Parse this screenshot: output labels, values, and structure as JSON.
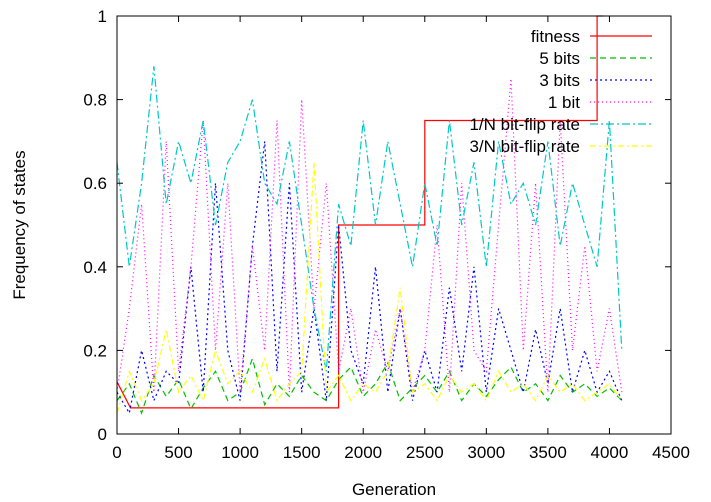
{
  "chart_data": {
    "type": "line",
    "xlabel": "Generation",
    "ylabel": "Frequency of states",
    "xlim": [
      0,
      4500
    ],
    "ylim": [
      0,
      1
    ],
    "x_ticks": [
      0,
      500,
      1000,
      1500,
      2000,
      2500,
      3000,
      3500,
      4000,
      4500
    ],
    "y_ticks": [
      0,
      0.2,
      0.4,
      0.6,
      0.8,
      1
    ],
    "y_tick_labels": [
      "0",
      "0.2",
      "0.4",
      "0.6",
      "0.8",
      "1"
    ],
    "legend_position": "top-right",
    "grid": false,
    "series": [
      {
        "name": "fitness",
        "color": "#ff0000",
        "dash": "solid",
        "step": true,
        "points": [
          [
            0,
            0.125
          ],
          [
            110,
            0.0625
          ],
          [
            1800,
            0.0625
          ],
          [
            1800,
            0.5
          ],
          [
            2500,
            0.5
          ],
          [
            2500,
            0.75
          ],
          [
            3900,
            0.75
          ],
          [
            3900,
            1.0
          ],
          [
            3950,
            1.0
          ]
        ]
      },
      {
        "name": "5 bits",
        "color": "#00c000",
        "dash": "6,4",
        "points": [
          [
            0,
            0.08
          ],
          [
            100,
            0.12
          ],
          [
            200,
            0.05
          ],
          [
            300,
            0.14
          ],
          [
            400,
            0.09
          ],
          [
            500,
            0.13
          ],
          [
            600,
            0.06
          ],
          [
            700,
            0.11
          ],
          [
            800,
            0.15
          ],
          [
            900,
            0.08
          ],
          [
            1000,
            0.1
          ],
          [
            1100,
            0.18
          ],
          [
            1200,
            0.07
          ],
          [
            1300,
            0.12
          ],
          [
            1400,
            0.09
          ],
          [
            1500,
            0.14
          ],
          [
            1600,
            0.1
          ],
          [
            1700,
            0.08
          ],
          [
            1800,
            0.13
          ],
          [
            1900,
            0.16
          ],
          [
            2000,
            0.09
          ],
          [
            2100,
            0.12
          ],
          [
            2200,
            0.17
          ],
          [
            2300,
            0.08
          ],
          [
            2400,
            0.11
          ],
          [
            2500,
            0.14
          ],
          [
            2600,
            0.1
          ],
          [
            2700,
            0.15
          ],
          [
            2800,
            0.08
          ],
          [
            2900,
            0.12
          ],
          [
            3000,
            0.09
          ],
          [
            3100,
            0.13
          ],
          [
            3200,
            0.16
          ],
          [
            3300,
            0.1
          ],
          [
            3400,
            0.12
          ],
          [
            3500,
            0.08
          ],
          [
            3600,
            0.14
          ],
          [
            3700,
            0.1
          ],
          [
            3800,
            0.12
          ],
          [
            3900,
            0.09
          ],
          [
            4000,
            0.11
          ],
          [
            4100,
            0.08
          ]
        ]
      },
      {
        "name": "3 bits",
        "color": "#0000ff",
        "dash": "2,3",
        "points": [
          [
            0,
            0.1
          ],
          [
            100,
            0.05
          ],
          [
            200,
            0.2
          ],
          [
            300,
            0.08
          ],
          [
            400,
            0.15
          ],
          [
            500,
            0.12
          ],
          [
            600,
            0.4
          ],
          [
            700,
            0.1
          ],
          [
            800,
            0.6
          ],
          [
            900,
            0.2
          ],
          [
            1000,
            0.08
          ],
          [
            1100,
            0.45
          ],
          [
            1200,
            0.7
          ],
          [
            1300,
            0.15
          ],
          [
            1400,
            0.6
          ],
          [
            1500,
            0.1
          ],
          [
            1600,
            0.3
          ],
          [
            1700,
            0.08
          ],
          [
            1800,
            0.5
          ],
          [
            1900,
            0.2
          ],
          [
            2000,
            0.12
          ],
          [
            2100,
            0.4
          ],
          [
            2200,
            0.1
          ],
          [
            2300,
            0.3
          ],
          [
            2400,
            0.08
          ],
          [
            2500,
            0.2
          ],
          [
            2600,
            0.1
          ],
          [
            2700,
            0.35
          ],
          [
            2800,
            0.15
          ],
          [
            2900,
            0.4
          ],
          [
            3000,
            0.1
          ],
          [
            3100,
            0.3
          ],
          [
            3200,
            0.2
          ],
          [
            3300,
            0.1
          ],
          [
            3400,
            0.25
          ],
          [
            3500,
            0.12
          ],
          [
            3600,
            0.3
          ],
          [
            3700,
            0.1
          ],
          [
            3800,
            0.2
          ],
          [
            3900,
            0.1
          ],
          [
            4000,
            0.15
          ],
          [
            4100,
            0.08
          ]
        ]
      },
      {
        "name": "1 bit",
        "color": "#ff00ff",
        "dash": "1,3",
        "points": [
          [
            0,
            0.1
          ],
          [
            100,
            0.3
          ],
          [
            200,
            0.55
          ],
          [
            300,
            0.1
          ],
          [
            400,
            0.7
          ],
          [
            500,
            0.15
          ],
          [
            600,
            0.4
          ],
          [
            700,
            0.75
          ],
          [
            800,
            0.2
          ],
          [
            900,
            0.6
          ],
          [
            1000,
            0.1
          ],
          [
            1100,
            0.45
          ],
          [
            1200,
            0.2
          ],
          [
            1300,
            0.75
          ],
          [
            1400,
            0.1
          ],
          [
            1500,
            0.8
          ],
          [
            1600,
            0.3
          ],
          [
            1700,
            0.6
          ],
          [
            1800,
            0.15
          ],
          [
            1900,
            0.3
          ],
          [
            2000,
            0.1
          ],
          [
            2100,
            0.25
          ],
          [
            2200,
            0.15
          ],
          [
            2300,
            0.3
          ],
          [
            2400,
            0.1
          ],
          [
            2500,
            0.2
          ],
          [
            2600,
            0.5
          ],
          [
            2700,
            0.1
          ],
          [
            2800,
            0.6
          ],
          [
            2900,
            0.2
          ],
          [
            3000,
            0.15
          ],
          [
            3100,
            0.5
          ],
          [
            3200,
            0.85
          ],
          [
            3300,
            0.2
          ],
          [
            3400,
            0.6
          ],
          [
            3500,
            0.1
          ],
          [
            3600,
            0.75
          ],
          [
            3700,
            0.2
          ],
          [
            3800,
            0.45
          ],
          [
            3900,
            0.15
          ],
          [
            4000,
            0.3
          ],
          [
            4100,
            0.1
          ]
        ]
      },
      {
        "name": "1/N bit-flip rate",
        "color": "#00c8c8",
        "dash": "8,3,2,3",
        "points": [
          [
            0,
            0.65
          ],
          [
            100,
            0.4
          ],
          [
            200,
            0.6
          ],
          [
            300,
            0.88
          ],
          [
            400,
            0.55
          ],
          [
            500,
            0.7
          ],
          [
            600,
            0.6
          ],
          [
            700,
            0.75
          ],
          [
            800,
            0.5
          ],
          [
            900,
            0.65
          ],
          [
            1000,
            0.7
          ],
          [
            1100,
            0.8
          ],
          [
            1200,
            0.6
          ],
          [
            1300,
            0.55
          ],
          [
            1400,
            0.7
          ],
          [
            1500,
            0.5
          ],
          [
            1600,
            0.3
          ],
          [
            1700,
            0.15
          ],
          [
            1800,
            0.55
          ],
          [
            1900,
            0.45
          ],
          [
            2000,
            0.75
          ],
          [
            2100,
            0.5
          ],
          [
            2200,
            0.7
          ],
          [
            2300,
            0.55
          ],
          [
            2400,
            0.4
          ],
          [
            2500,
            0.6
          ],
          [
            2600,
            0.45
          ],
          [
            2700,
            0.75
          ],
          [
            2800,
            0.5
          ],
          [
            2900,
            0.65
          ],
          [
            3000,
            0.4
          ],
          [
            3100,
            0.7
          ],
          [
            3200,
            0.55
          ],
          [
            3300,
            0.6
          ],
          [
            3400,
            0.5
          ],
          [
            3500,
            0.7
          ],
          [
            3600,
            0.45
          ],
          [
            3700,
            0.6
          ],
          [
            3800,
            0.5
          ],
          [
            3900,
            0.4
          ],
          [
            4000,
            0.75
          ],
          [
            4100,
            0.2
          ]
        ]
      },
      {
        "name": "3/N bit-flip rate",
        "color": "#ffff00",
        "dash": "6,3,2,3",
        "points": [
          [
            0,
            0.05
          ],
          [
            100,
            0.15
          ],
          [
            200,
            0.08
          ],
          [
            300,
            0.12
          ],
          [
            400,
            0.25
          ],
          [
            500,
            0.1
          ],
          [
            600,
            0.14
          ],
          [
            700,
            0.08
          ],
          [
            800,
            0.2
          ],
          [
            900,
            0.12
          ],
          [
            1000,
            0.15
          ],
          [
            1100,
            0.1
          ],
          [
            1200,
            0.18
          ],
          [
            1300,
            0.08
          ],
          [
            1400,
            0.12
          ],
          [
            1500,
            0.15
          ],
          [
            1600,
            0.65
          ],
          [
            1700,
            0.1
          ],
          [
            1800,
            0.14
          ],
          [
            1900,
            0.08
          ],
          [
            2000,
            0.12
          ],
          [
            2100,
            0.1
          ],
          [
            2200,
            0.15
          ],
          [
            2300,
            0.35
          ],
          [
            2400,
            0.1
          ],
          [
            2500,
            0.12
          ],
          [
            2600,
            0.08
          ],
          [
            2700,
            0.14
          ],
          [
            2800,
            0.1
          ],
          [
            2900,
            0.12
          ],
          [
            3000,
            0.08
          ],
          [
            3100,
            0.15
          ],
          [
            3200,
            0.1
          ],
          [
            3300,
            0.12
          ],
          [
            3400,
            0.08
          ],
          [
            3500,
            0.14
          ],
          [
            3600,
            0.1
          ],
          [
            3700,
            0.12
          ],
          [
            3800,
            0.08
          ],
          [
            3900,
            0.1
          ],
          [
            4000,
            0.12
          ],
          [
            4100,
            0.08
          ]
        ]
      }
    ]
  }
}
